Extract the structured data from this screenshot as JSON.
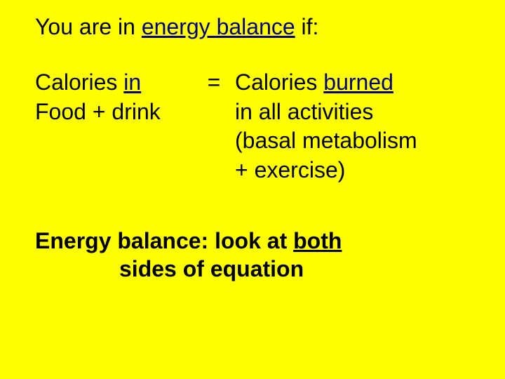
{
  "colors": {
    "background": "#ffff00",
    "text": "#000000",
    "accent": "#000080"
  },
  "typography": {
    "font_family": "Verdana, Tahoma, Geneva, sans-serif",
    "title_fontsize": 32,
    "body_fontsize": 32,
    "conclusion_fontsize": 32,
    "conclusion_weight": "bold"
  },
  "title": {
    "prefix": "You are in ",
    "underlined": "energy balance",
    "suffix": " if:"
  },
  "equation": {
    "left": {
      "line1_prefix": "Calories ",
      "line1_accent": "in",
      "line2": "Food + drink"
    },
    "operator": "=",
    "right": {
      "line1_prefix": "Calories ",
      "line1_accent": "burned",
      "line2": " in all activities",
      "line3": "(basal metabolism",
      "line4": " + exercise)"
    }
  },
  "conclusion": {
    "line1_prefix": "Energy balance: look at ",
    "line1_underlined": "both",
    "line2": "sides of equation"
  }
}
